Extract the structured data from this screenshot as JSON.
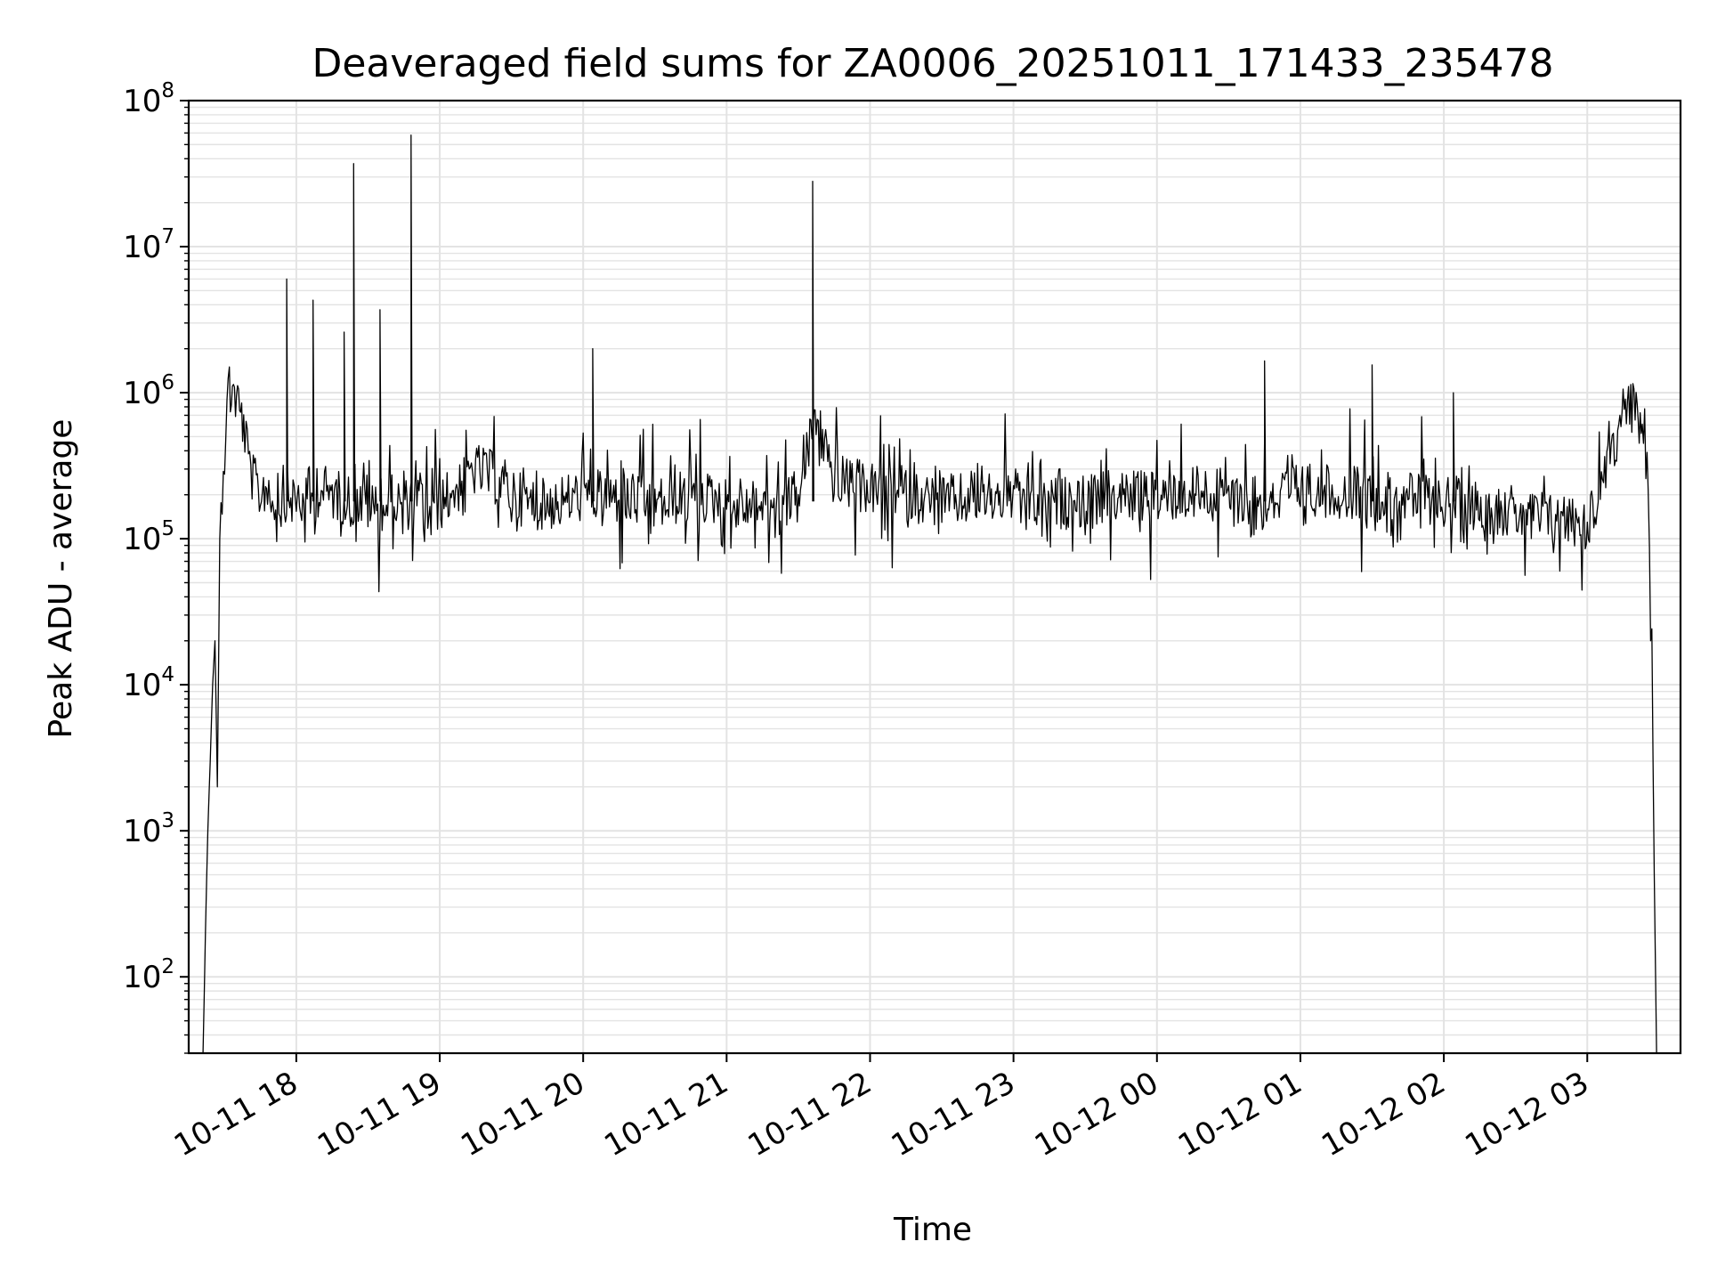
{
  "chart_data": {
    "type": "line",
    "title": "Deaveraged field sums for ZA0006_20251011_171433_235478",
    "xlabel": "Time",
    "ylabel": "Peak ADU - average",
    "yscale": "log",
    "ylim": [
      30,
      100000000
    ],
    "xlim": [
      "2025-10-11 17:15",
      "2025-10-12 03:39"
    ],
    "grid": true,
    "line_color": "#000000",
    "grid_color": "#e3e3e3",
    "x_ticks": [
      {
        "value": "2025-10-11 18:00",
        "label": "10-11 18"
      },
      {
        "value": "2025-10-11 19:00",
        "label": "10-11 19"
      },
      {
        "value": "2025-10-11 20:00",
        "label": "10-11 20"
      },
      {
        "value": "2025-10-11 21:00",
        "label": "10-11 21"
      },
      {
        "value": "2025-10-11 22:00",
        "label": "10-11 22"
      },
      {
        "value": "2025-10-11 23:00",
        "label": "10-11 23"
      },
      {
        "value": "2025-10-12 00:00",
        "label": "10-12 00"
      },
      {
        "value": "2025-10-12 01:00",
        "label": "10-12 01"
      },
      {
        "value": "2025-10-12 02:00",
        "label": "10-12 02"
      },
      {
        "value": "2025-10-12 03:00",
        "label": "10-12 03"
      }
    ],
    "y_ticks": [
      {
        "value": 100,
        "base": "10",
        "exp": "2"
      },
      {
        "value": 1000,
        "base": "10",
        "exp": "3"
      },
      {
        "value": 10000,
        "base": "10",
        "exp": "4"
      },
      {
        "value": 100000,
        "base": "10",
        "exp": "5"
      },
      {
        "value": 1000000,
        "base": "10",
        "exp": "6"
      },
      {
        "value": 10000000,
        "base": "10",
        "exp": "7"
      },
      {
        "value": 100000000,
        "base": "10",
        "exp": "8"
      }
    ],
    "series": [
      {
        "x": [
          "2025-10-11 17:21",
          "2025-10-11 17:22",
          "2025-10-11 17:23",
          "2025-10-11 17:24",
          "2025-10-11 17:25",
          "2025-10-11 17:26",
          "2025-10-11 17:27",
          "2025-10-11 17:28",
          "2025-10-11 17:30",
          "2025-10-11 17:32",
          "2025-10-11 17:35",
          "2025-10-11 17:38",
          "2025-10-11 17:40",
          "2025-10-11 17:42",
          "2025-10-11 17:45",
          "2025-10-11 17:48",
          "2025-10-11 17:50",
          "2025-10-11 17:55",
          "2025-10-11 18:00",
          "2025-10-11 18:05",
          "2025-10-11 18:10",
          "2025-10-11 18:15",
          "2025-10-11 18:20",
          "2025-10-11 18:25",
          "2025-10-11 18:30",
          "2025-10-11 18:35",
          "2025-10-11 18:40",
          "2025-10-11 18:45",
          "2025-10-11 18:50",
          "2025-10-11 18:55",
          "2025-10-11 19:00",
          "2025-10-11 19:15",
          "2025-10-11 19:25",
          "2025-10-11 19:35",
          "2025-10-11 19:45",
          "2025-10-11 20:00",
          "2025-10-11 20:15",
          "2025-10-11 20:30",
          "2025-10-11 20:45",
          "2025-10-11 21:00",
          "2025-10-11 21:15",
          "2025-10-11 21:30",
          "2025-10-11 21:37",
          "2025-10-11 21:45",
          "2025-10-11 22:00",
          "2025-10-11 22:15",
          "2025-10-11 22:30",
          "2025-10-11 22:45",
          "2025-10-11 23:00",
          "2025-10-11 23:15",
          "2025-10-11 23:30",
          "2025-10-11 23:45",
          "2025-10-12 00:00",
          "2025-10-12 00:15",
          "2025-10-12 00:30",
          "2025-10-12 00:45",
          "2025-10-12 01:00",
          "2025-10-12 01:15",
          "2025-10-12 01:30",
          "2025-10-12 01:45",
          "2025-10-12 02:00",
          "2025-10-12 02:15",
          "2025-10-12 02:30",
          "2025-10-12 02:45",
          "2025-10-12 03:00",
          "2025-10-12 03:05",
          "2025-10-12 03:10",
          "2025-10-12 03:15",
          "2025-10-12 03:20",
          "2025-10-12 03:23",
          "2025-10-12 03:25",
          "2025-10-12 03:27",
          "2025-10-12 03:28",
          "2025-10-12 03:29"
        ],
        "y": [
          30,
          200,
          1000,
          3000,
          10000,
          20000,
          2000,
          100000,
          500000,
          1200000,
          900000,
          600000,
          350000,
          250000,
          200000,
          250000,
          180000,
          200000,
          180000,
          170000,
          220000,
          200000,
          190000,
          180000,
          170000,
          160000,
          180000,
          170000,
          180000,
          160000,
          170000,
          300000,
          250000,
          180000,
          170000,
          200000,
          190000,
          170000,
          200000,
          180000,
          170000,
          190000,
          700000,
          250000,
          220000,
          200000,
          180000,
          190000,
          200000,
          170000,
          180000,
          200000,
          190000,
          210000,
          200000,
          180000,
          220000,
          210000,
          200000,
          190000,
          180000,
          170000,
          150000,
          140000,
          130000,
          200000,
          500000,
          750000,
          800000,
          600000,
          300000,
          20000,
          500,
          30
        ],
        "spikes": [
          {
            "x": "2025-10-11 17:56",
            "y": 6000000
          },
          {
            "x": "2025-10-11 18:07",
            "y": 4300000
          },
          {
            "x": "2025-10-11 18:20",
            "y": 2600000
          },
          {
            "x": "2025-10-11 18:24",
            "y": 37000000
          },
          {
            "x": "2025-10-11 18:35",
            "y": 3700000
          },
          {
            "x": "2025-10-11 18:48",
            "y": 58000000
          },
          {
            "x": "2025-10-11 20:04",
            "y": 2000000
          },
          {
            "x": "2025-10-11 21:36",
            "y": 28000000
          },
          {
            "x": "2025-10-12 00:45",
            "y": 1650000
          },
          {
            "x": "2025-10-12 01:30",
            "y": 1550000
          },
          {
            "x": "2025-10-12 02:04",
            "y": 1000000
          }
        ]
      }
    ]
  }
}
